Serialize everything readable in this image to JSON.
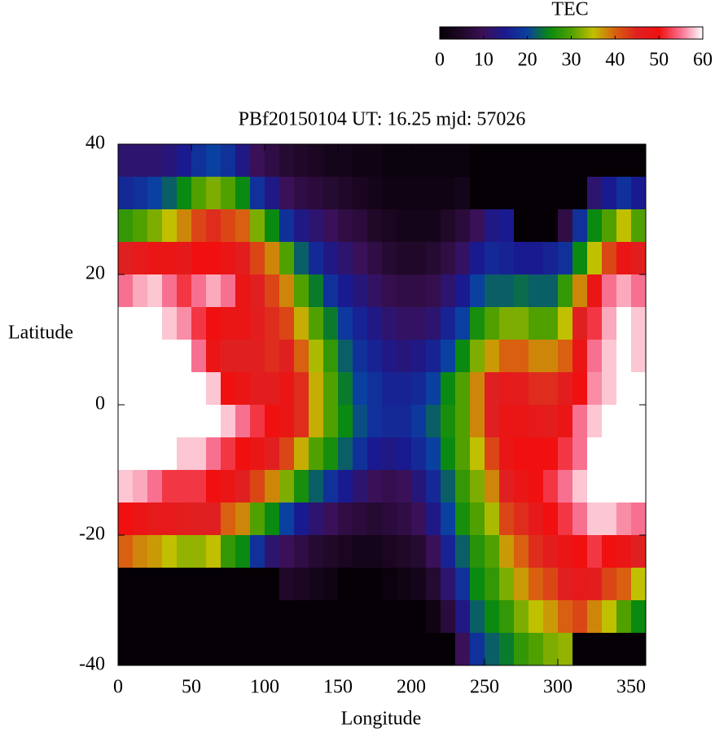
{
  "chart_data": {
    "type": "heatmap",
    "title": "PBf20150104  UT: 16.25  mjd: 57026",
    "xlabel": "Longitude",
    "ylabel": "Latitude",
    "xlim": [
      0,
      360
    ],
    "ylim": [
      -40,
      40
    ],
    "xticks": [
      0,
      50,
      100,
      150,
      200,
      250,
      300,
      350
    ],
    "yticks": [
      -40,
      -20,
      0,
      20,
      40
    ],
    "x": [
      5,
      15,
      25,
      35,
      45,
      55,
      65,
      75,
      85,
      95,
      105,
      115,
      125,
      135,
      145,
      155,
      165,
      175,
      185,
      195,
      205,
      215,
      225,
      235,
      245,
      255,
      265,
      275,
      285,
      295,
      305,
      315,
      325,
      335,
      345,
      355
    ],
    "y": [
      37.5,
      32.5,
      27.5,
      22.5,
      17.5,
      12.5,
      7.5,
      2.5,
      -2.5,
      -7.5,
      -12.5,
      -17.5,
      -22.5,
      -27.5,
      -32.5,
      -37.5
    ],
    "values": [
      [
        12,
        17,
        28,
        45,
        55,
        60,
        60,
        60,
        60,
        60,
        58,
        50,
        40,
        0,
        0,
        0
      ],
      [
        12,
        18,
        30,
        47,
        57,
        60,
        60,
        60,
        60,
        60,
        57,
        48,
        38,
        0,
        0,
        0
      ],
      [
        12,
        20,
        32,
        48,
        58,
        60,
        60,
        60,
        60,
        60,
        55,
        47,
        37,
        0,
        0,
        0
      ],
      [
        13,
        22,
        35,
        48,
        55,
        58,
        60,
        60,
        60,
        60,
        52,
        47,
        35,
        0,
        0,
        0
      ],
      [
        15,
        25,
        38,
        47,
        52,
        56,
        60,
        60,
        60,
        58,
        52,
        46,
        33,
        0,
        0,
        0
      ],
      [
        18,
        30,
        42,
        50,
        55,
        52,
        55,
        60,
        60,
        58,
        52,
        45,
        33,
        0,
        0,
        0
      ],
      [
        20,
        32,
        44,
        50,
        57,
        50,
        48,
        58,
        60,
        55,
        50,
        45,
        35,
        0,
        0,
        0
      ],
      [
        18,
        30,
        42,
        48,
        55,
        48,
        45,
        50,
        58,
        52,
        48,
        40,
        28,
        0,
        0,
        0
      ],
      [
        14,
        25,
        40,
        46,
        48,
        48,
        45,
        48,
        55,
        50,
        45,
        38,
        25,
        0,
        0,
        0
      ],
      [
        10,
        18,
        32,
        42,
        45,
        46,
        45,
        46,
        52,
        48,
        42,
        30,
        18,
        0,
        0,
        0
      ],
      [
        8,
        14,
        25,
        38,
        42,
        44,
        44,
        46,
        50,
        45,
        38,
        25,
        12,
        0,
        0,
        0
      ],
      [
        6,
        10,
        18,
        30,
        38,
        42,
        45,
        48,
        48,
        42,
        32,
        20,
        10,
        5,
        0,
        0
      ],
      [
        5,
        8,
        14,
        22,
        30,
        36,
        40,
        44,
        44,
        36,
        26,
        15,
        8,
        4,
        0,
        0
      ],
      [
        4,
        7,
        12,
        17,
        24,
        30,
        34,
        36,
        36,
        30,
        22,
        12,
        6,
        3,
        0,
        0
      ],
      [
        3,
        6,
        10,
        14,
        18,
        24,
        28,
        30,
        30,
        26,
        18,
        10,
        5,
        2,
        0,
        0
      ],
      [
        3,
        5,
        8,
        12,
        15,
        19,
        22,
        24,
        25,
        22,
        15,
        8,
        4,
        0,
        0,
        0
      ],
      [
        2,
        4,
        7,
        10,
        13,
        16,
        18,
        20,
        21,
        18,
        12,
        7,
        3,
        0,
        0,
        0
      ],
      [
        2,
        3,
        5,
        8,
        11,
        14,
        16,
        18,
        18,
        15,
        10,
        6,
        3,
        0,
        0,
        0
      ],
      [
        1,
        2,
        4,
        6,
        9,
        12,
        14,
        16,
        17,
        14,
        9,
        7,
        4,
        1,
        0,
        0
      ],
      [
        1,
        2,
        3,
        5,
        8,
        11,
        13,
        16,
        17,
        15,
        10,
        8,
        5,
        2,
        0,
        0
      ],
      [
        1,
        2,
        3,
        5,
        8,
        11,
        14,
        17,
        19,
        17,
        13,
        10,
        6,
        3,
        0,
        0
      ],
      [
        1,
        2,
        3,
        6,
        9,
        12,
        16,
        20,
        22,
        20,
        17,
        14,
        10,
        6,
        2,
        0
      ],
      [
        1,
        2,
        5,
        8,
        12,
        16,
        20,
        25,
        26,
        25,
        22,
        20,
        16,
        12,
        7,
        0
      ],
      [
        1,
        3,
        7,
        11,
        15,
        20,
        25,
        30,
        30,
        30,
        28,
        26,
        22,
        18,
        14,
        10
      ],
      [
        0,
        0,
        10,
        15,
        20,
        26,
        32,
        38,
        38,
        35,
        32,
        30,
        27,
        25,
        22,
        18
      ],
      [
        0,
        0,
        14,
        17,
        22,
        30,
        37,
        45,
        45,
        42,
        38,
        34,
        30,
        28,
        25,
        22
      ],
      [
        0,
        0,
        15,
        16,
        22,
        32,
        40,
        47,
        48,
        48,
        45,
        42,
        37,
        32,
        28,
        24
      ],
      [
        0,
        0,
        0,
        15,
        23,
        32,
        40,
        46,
        48,
        50,
        48,
        44,
        40,
        37,
        32,
        28
      ],
      [
        0,
        0,
        0,
        15,
        22,
        30,
        38,
        44,
        47,
        50,
        50,
        47,
        44,
        40,
        35,
        30
      ],
      [
        0,
        0,
        0,
        16,
        22,
        30,
        38,
        44,
        46,
        50,
        52,
        50,
        46,
        42,
        37,
        32
      ],
      [
        0,
        0,
        8,
        18,
        28,
        35,
        40,
        46,
        48,
        52,
        55,
        52,
        48,
        45,
        40,
        33
      ],
      [
        0,
        0,
        18,
        25,
        38,
        45,
        48,
        50,
        55,
        55,
        58,
        55,
        50,
        47,
        42,
        0
      ],
      [
        0,
        12,
        25,
        35,
        48,
        52,
        55,
        56,
        58,
        60,
        60,
        58,
        52,
        46,
        38,
        0
      ],
      [
        0,
        15,
        30,
        42,
        55,
        57,
        58,
        58,
        60,
        60,
        60,
        58,
        50,
        42,
        35,
        0
      ],
      [
        0,
        18,
        35,
        48,
        57,
        60,
        60,
        60,
        60,
        60,
        60,
        56,
        48,
        40,
        30,
        0
      ],
      [
        0,
        15,
        30,
        46,
        55,
        58,
        58,
        60,
        60,
        60,
        60,
        55,
        45,
        35,
        25,
        0
      ]
    ],
    "colorbar": {
      "label": "TEC",
      "lim": [
        0,
        60
      ],
      "ticks": [
        0,
        10,
        20,
        30,
        40,
        50,
        60
      ]
    },
    "colormap": [
      "#050005",
      "#200828",
      "#3a1058",
      "#1a1a90",
      "#0a40a0",
      "#0a8a10",
      "#50a000",
      "#c0c000",
      "#d86010",
      "#e02020",
      "#f01010",
      "#f87090",
      "#ffffff"
    ]
  }
}
